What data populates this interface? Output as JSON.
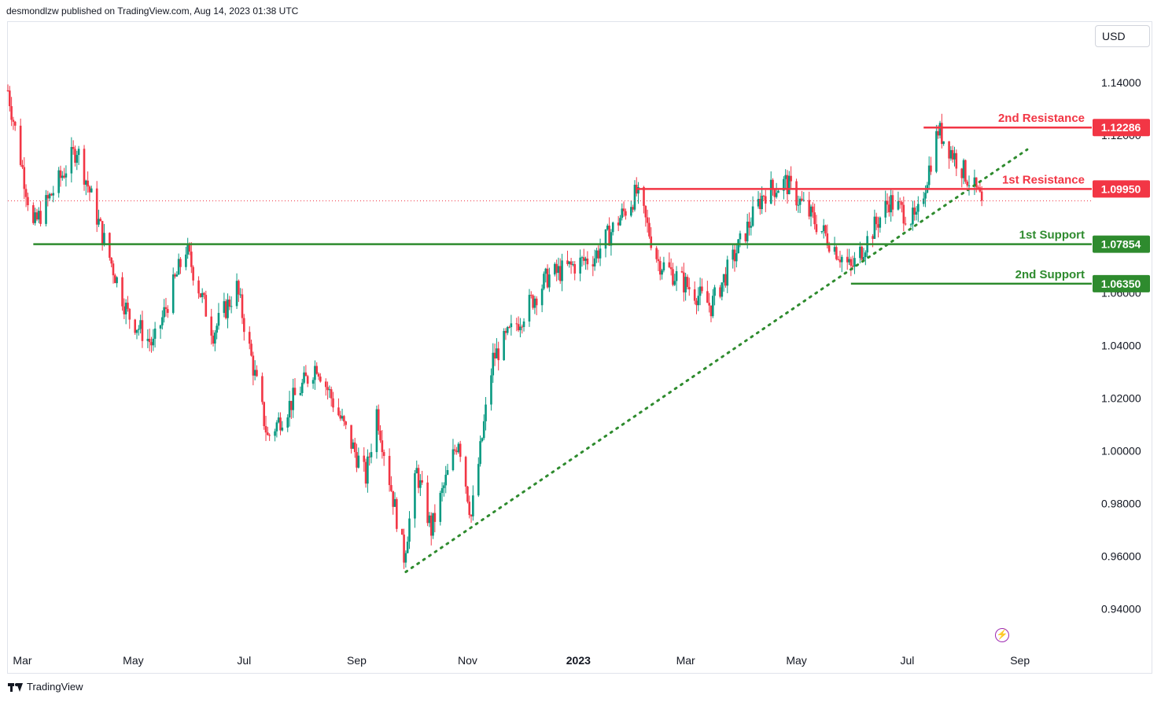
{
  "header": {
    "publish_text": "desmondlzw published on TradingView.com, Aug 14, 2023 01:38 UTC"
  },
  "currency": "USD",
  "footer": {
    "brand": "TradingView"
  },
  "chart_data": {
    "type": "candlestick",
    "title": "",
    "ylim": [
      0.928,
      1.1615
    ],
    "y_ticks": [
      "0.94000",
      "0.96000",
      "0.98000",
      "1.00000",
      "1.02000",
      "1.04000",
      "1.06000",
      "1.08000",
      "1.12000",
      "1.14000"
    ],
    "x_ticks": [
      "Mar",
      "May",
      "Jul",
      "Sep",
      "Nov",
      "2023",
      "Mar",
      "May",
      "Jul",
      "Sep"
    ],
    "grid": false,
    "colors": {
      "up": "#089981",
      "down": "#f23645",
      "resistance": "#f23645",
      "support": "#2e8b2e"
    },
    "price_path_anchors": [
      [
        "2022-02-21",
        1.137
      ],
      [
        "2022-03-07",
        1.085
      ],
      [
        "2022-03-31",
        1.115
      ],
      [
        "2022-04-14",
        1.082
      ],
      [
        "2022-04-28",
        1.052
      ],
      [
        "2022-05-12",
        1.04
      ],
      [
        "2022-05-30",
        1.077
      ],
      [
        "2022-06-14",
        1.045
      ],
      [
        "2022-06-27",
        1.062
      ],
      [
        "2022-07-14",
        1.005
      ],
      [
        "2022-08-10",
        1.033
      ],
      [
        "2022-09-06",
        0.99
      ],
      [
        "2022-09-12",
        1.015
      ],
      [
        "2022-09-27",
        0.96
      ],
      [
        "2022-10-04",
        0.992
      ],
      [
        "2022-10-12",
        0.97
      ],
      [
        "2022-10-27",
        1.005
      ],
      [
        "2022-11-03",
        0.975
      ],
      [
        "2022-11-15",
        1.035
      ],
      [
        "2022-12-15",
        1.066
      ],
      [
        "2023-01-10",
        1.074
      ],
      [
        "2023-02-02",
        1.098
      ],
      [
        "2023-02-14",
        1.072
      ],
      [
        "2023-03-15",
        1.055
      ],
      [
        "2023-04-13",
        1.098
      ],
      [
        "2023-04-25",
        1.102
      ],
      [
        "2023-05-31",
        1.069
      ],
      [
        "2023-06-21",
        1.095
      ],
      [
        "2023-07-06",
        1.087
      ],
      [
        "2023-07-18",
        1.122
      ],
      [
        "2023-08-11",
        1.095
      ]
    ],
    "levels": [
      {
        "name": "2nd Resistance",
        "value": "1.12286",
        "price": 1.12286,
        "type": "resistance",
        "start": "2023-07-10"
      },
      {
        "name": "1st Resistance",
        "value": "1.09950",
        "price": 1.0995,
        "type": "resistance",
        "start": "2023-02-02"
      },
      {
        "name": "1st Support",
        "value": "1.07854",
        "price": 1.07854,
        "type": "support",
        "start": "2022-03-07"
      },
      {
        "name": "2nd Support",
        "value": "1.06350",
        "price": 1.0635,
        "type": "support",
        "start": "2023-05-31"
      }
    ],
    "trendline": {
      "start": [
        "2022-09-28",
        0.954
      ],
      "end": [
        "2023-09-05",
        1.1145
      ],
      "style": "dotted"
    },
    "last_price": 1.095
  }
}
